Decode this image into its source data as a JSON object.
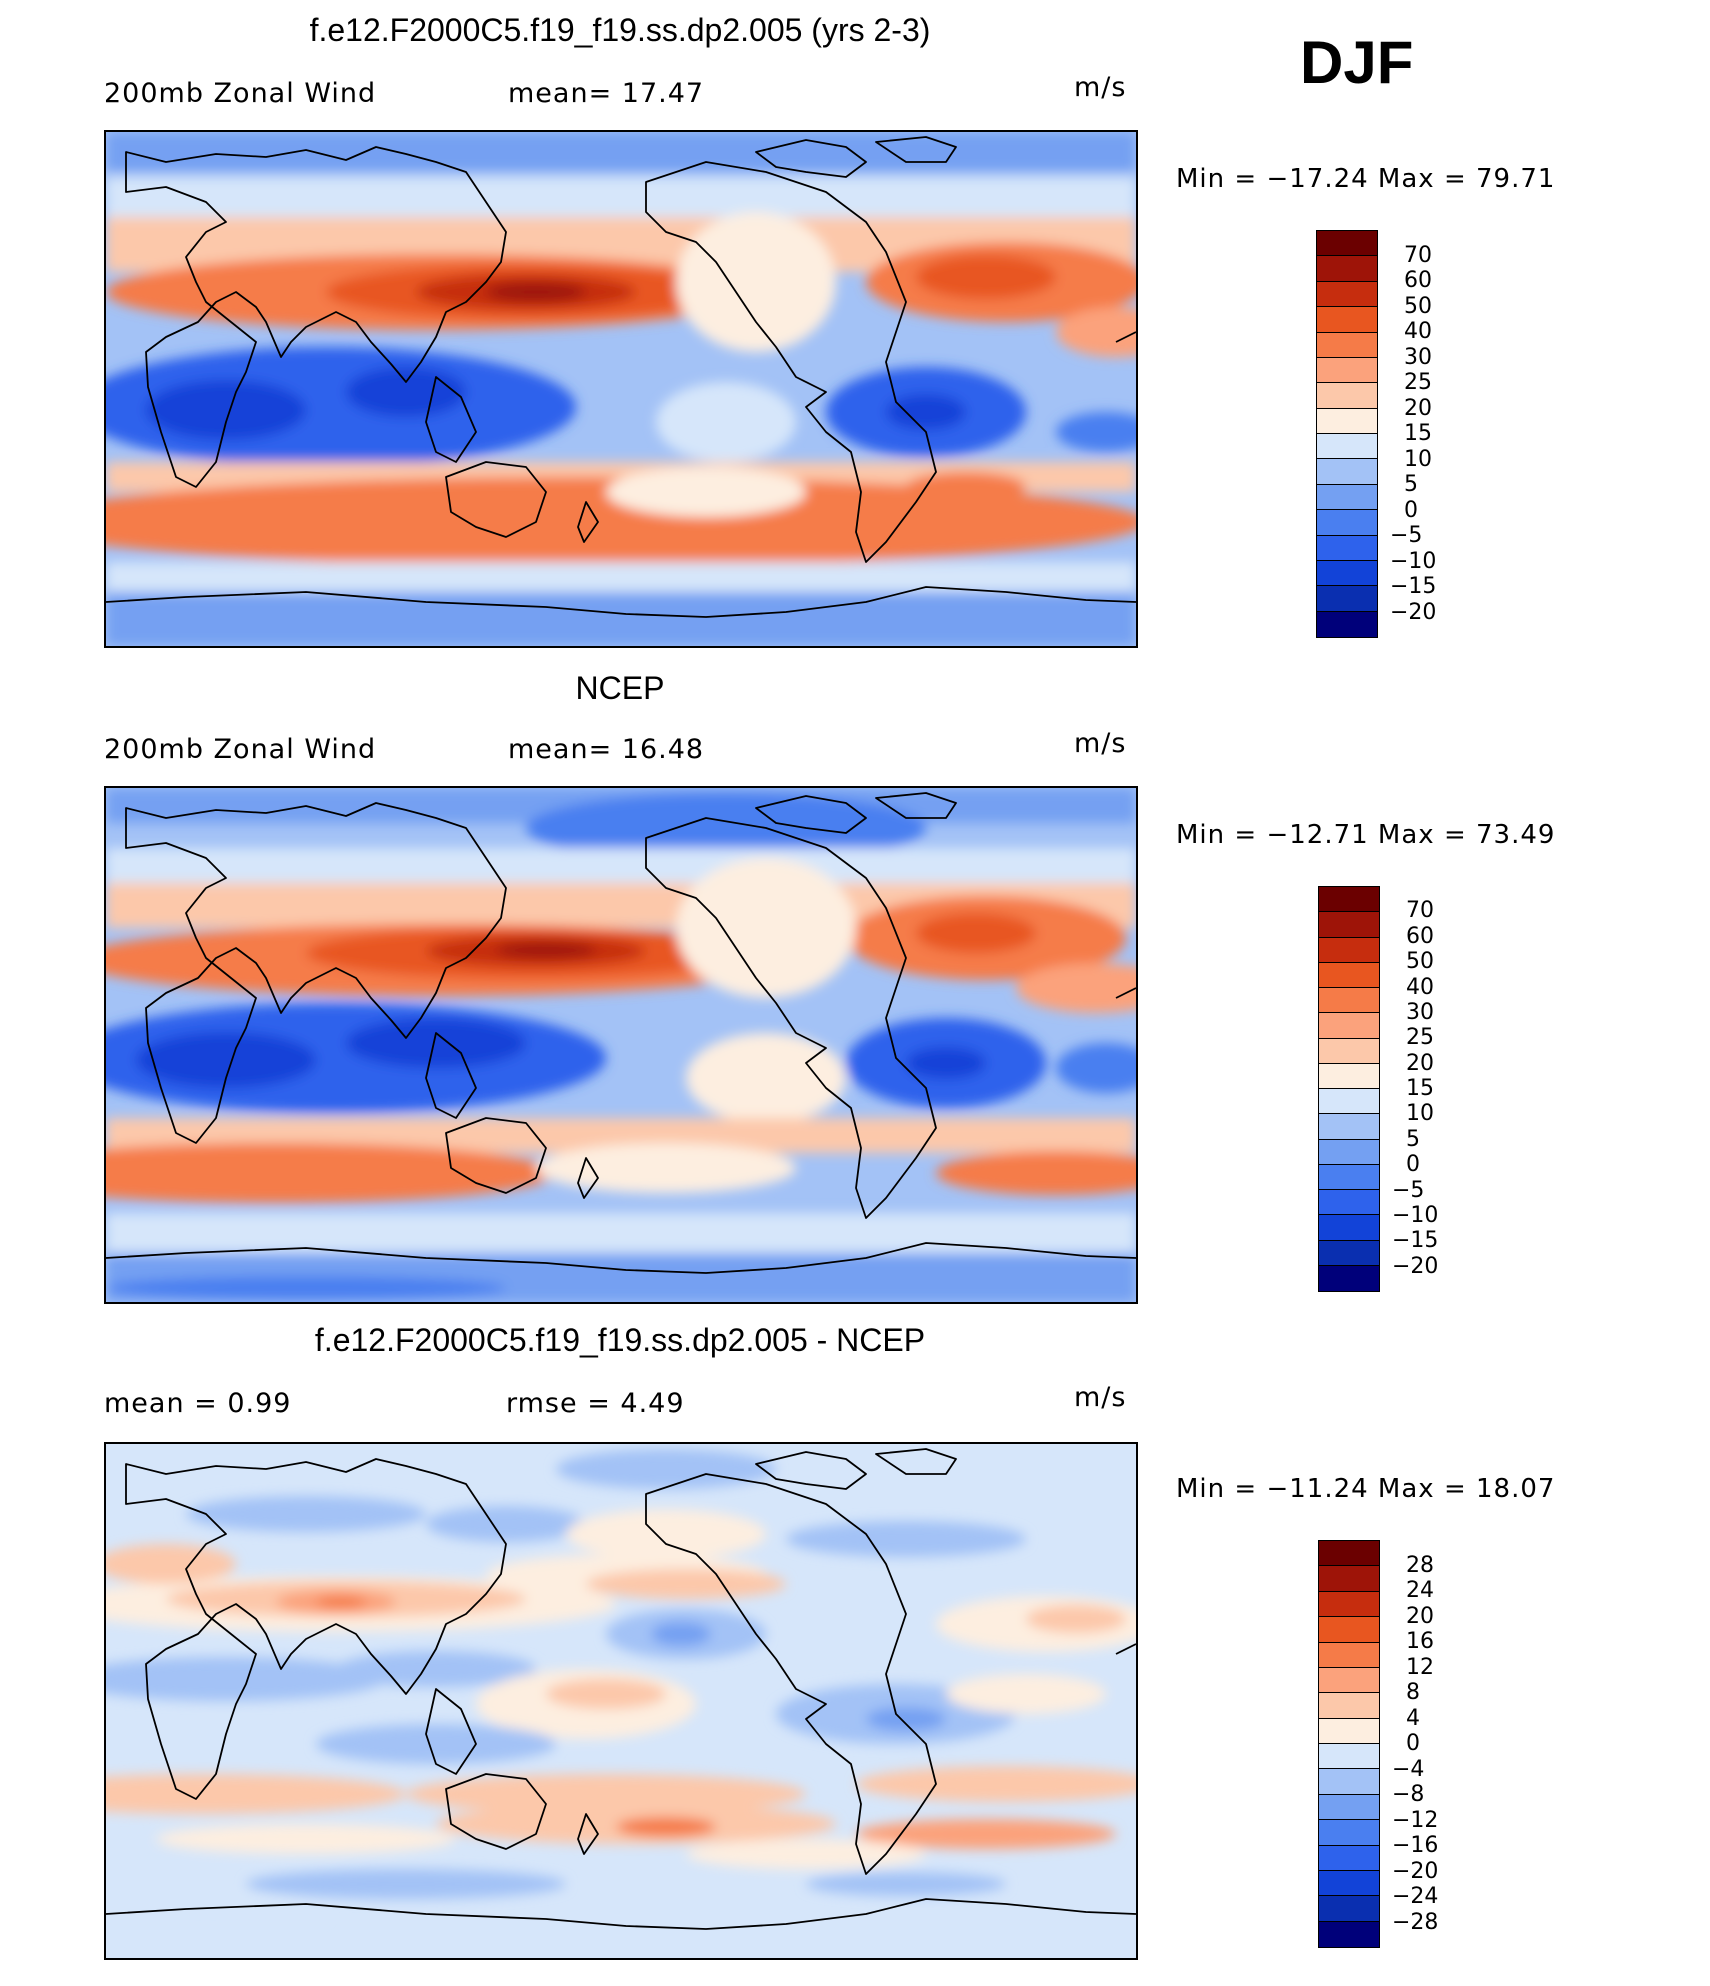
{
  "season": "DJF",
  "color_scale": [
    "#00007a",
    "#0a2fb0",
    "#1243d8",
    "#2e62ec",
    "#4a7ff0",
    "#74a0f2",
    "#a3c2f6",
    "#d6e6fa",
    "#fdeee0",
    "#fcc8aa",
    "#fba27c",
    "#f57b48",
    "#e85620",
    "#c62d0e",
    "#9e1408",
    "#6b0000"
  ],
  "panels": [
    {
      "title": "f.e12.F2000C5.f19_f19.ss.dp2.005 (yrs 2-3)",
      "left_label": "200mb Zonal Wind",
      "mid_label": "mean=  17.47",
      "units": "m/s",
      "minmax": "Min  =  −17.24  Max  =    79.71",
      "colorbar_labels": [
        "70",
        "60",
        "50",
        "40",
        "30",
        "25",
        "20",
        "15",
        "10",
        "5",
        "0",
        "−5",
        "−10",
        "−15",
        "−20"
      ]
    },
    {
      "title": "NCEP",
      "left_label": "200mb Zonal Wind",
      "mid_label": "mean=  16.48",
      "units": "m/s",
      "minmax": "Min  =  −12.71  Max  =    73.49",
      "colorbar_labels": [
        "70",
        "60",
        "50",
        "40",
        "30",
        "25",
        "20",
        "15",
        "10",
        "5",
        "0",
        "−5",
        "−10",
        "−15",
        "−20"
      ]
    },
    {
      "title": "f.e12.F2000C5.f19_f19.ss.dp2.005 - NCEP",
      "left_label": "mean =    0.99",
      "mid_label": "rmse =    4.49",
      "units": "m/s",
      "minmax": "Min  =  −11.24  Max  =    18.07",
      "colorbar_labels": [
        "28",
        "24",
        "20",
        "16",
        "12",
        "8",
        "4",
        "0",
        "−4",
        "−8",
        "−12",
        "−16",
        "−20",
        "−24",
        "−28"
      ]
    }
  ]
}
